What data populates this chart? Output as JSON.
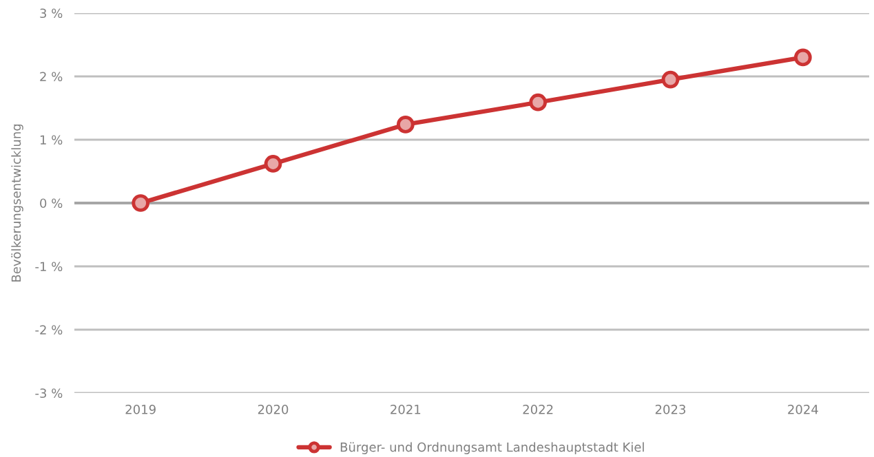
{
  "chart_data": {
    "type": "line",
    "ylabel": "Bevölkerungsentwicklung",
    "categories": [
      "2019",
      "2020",
      "2021",
      "2022",
      "2023",
      "2024"
    ],
    "series": [
      {
        "name": "Bürger- und Ordnungsamt Landeshauptstadt Kiel",
        "color": "#cc3333",
        "values": [
          0,
          0.62,
          1.24,
          1.59,
          1.95,
          2.3
        ]
      }
    ],
    "ylim": [
      -3,
      3
    ],
    "yticks": [
      {
        "value": -3,
        "label": "-3 %"
      },
      {
        "value": -2,
        "label": "-2 %"
      },
      {
        "value": -1,
        "label": "-1 %"
      },
      {
        "value": 0,
        "label": "0 %"
      },
      {
        "value": 1,
        "label": "1 %"
      },
      {
        "value": 2,
        "label": "2 %"
      },
      {
        "value": 3,
        "label": "3 %"
      }
    ],
    "ref_lines": [
      {
        "axis": "y",
        "value": 0,
        "color": "#a6a6a6"
      }
    ],
    "grid": "y",
    "legend": "bottom",
    "marker": "circle",
    "line_style": "solid"
  }
}
